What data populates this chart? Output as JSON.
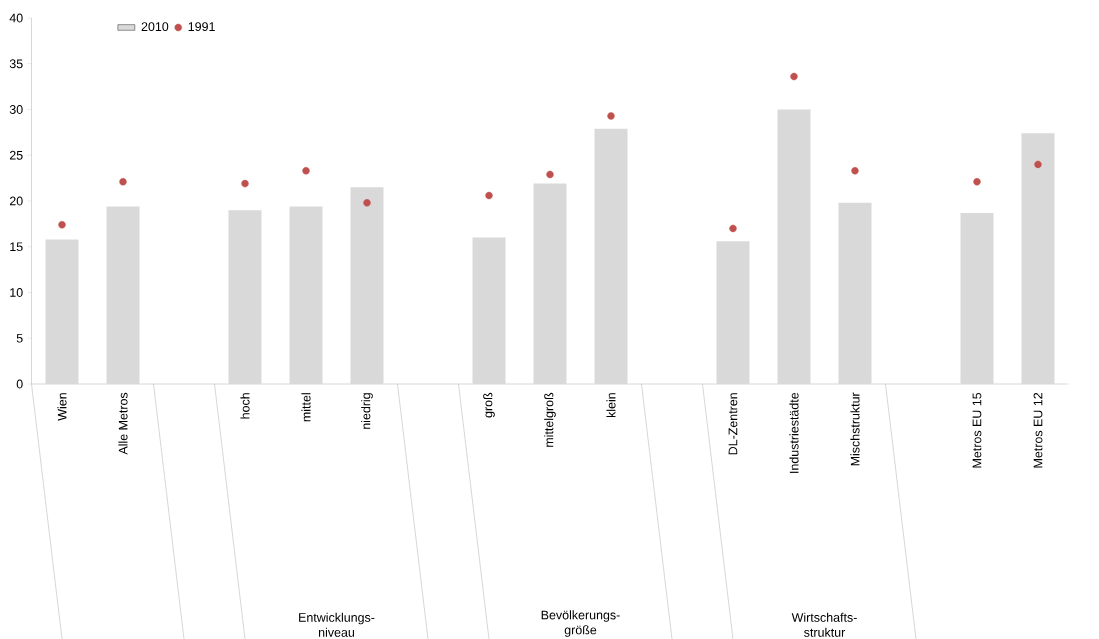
{
  "chart_data": {
    "type": "bar",
    "categories": [
      "Wien",
      "Alle Metros",
      null,
      "hoch",
      "mittel",
      "niedrig",
      null,
      "groß",
      "mittelgroß",
      "klein",
      null,
      "DL-Zentren",
      "Industriestädte",
      "Mischstruktur",
      null,
      "Metros EU 15",
      "Metros EU 12"
    ],
    "series": [
      {
        "name": "2010",
        "color": "#d9d9d9",
        "values": [
          15.8,
          19.4,
          null,
          19.0,
          19.4,
          21.5,
          null,
          16.0,
          21.9,
          27.9,
          null,
          15.6,
          30.0,
          19.8,
          null,
          18.7,
          27.4
        ]
      },
      {
        "name": "1991",
        "type": "scatter",
        "color": "#c0504d",
        "marker": "circle",
        "values": [
          17.4,
          22.1,
          null,
          21.9,
          23.3,
          19.8,
          null,
          20.6,
          22.9,
          29.3,
          null,
          17.0,
          33.6,
          23.3,
          null,
          22.1,
          24.0
        ]
      }
    ],
    "annotations": [
      "Entwicklungs-niveau",
      "Bevölkerungs-größe",
      "Wirtschafts-struktur"
    ],
    "ylim": [
      0,
      40
    ],
    "yticks": [
      0,
      5,
      10,
      15,
      20,
      25,
      30,
      35,
      40
    ],
    "grid": false,
    "legend": "top left"
  }
}
